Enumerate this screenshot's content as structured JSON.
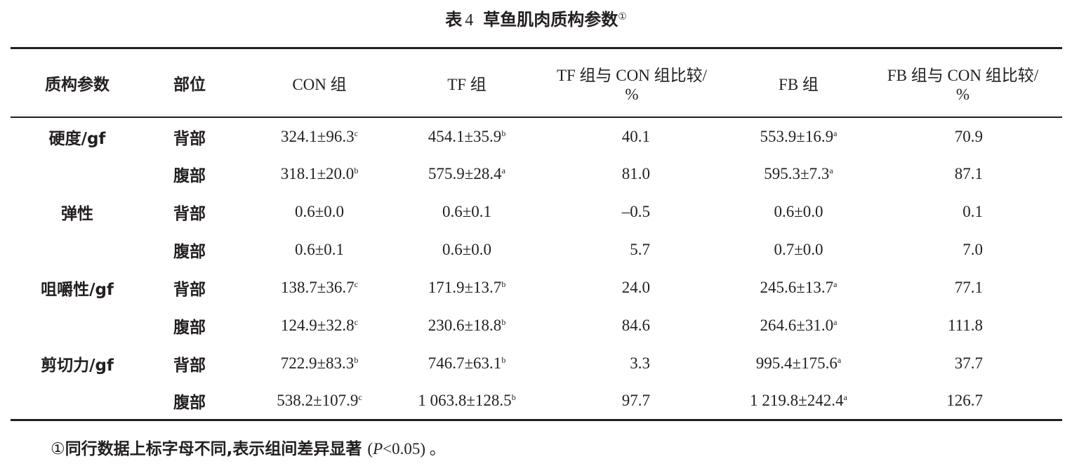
{
  "title": {
    "prefix": "表",
    "number": "4",
    "text": "草鱼肌肉质构参数",
    "footnote_mark": "①"
  },
  "headers": {
    "param": "质构参数",
    "part": "部位",
    "con": "CON 组",
    "tf": "TF 组",
    "tf_vs_con_line1": "TF 组与 CON 组比较/",
    "tf_vs_con_line2": "%",
    "fb": "FB 组",
    "fb_vs_con_line1": "FB 组与 CON 组比较/",
    "fb_vs_con_line2": "%"
  },
  "rows": [
    {
      "param": "硬度/gf",
      "part": "背部",
      "con": "324.1±96.3",
      "con_sup": "c",
      "tf": "454.1±35.9",
      "tf_sup": "b",
      "tf_pct": "40.1",
      "fb": "553.9±16.9",
      "fb_sup": "a",
      "fb_pct": "70.9"
    },
    {
      "param": "",
      "part": "腹部",
      "con": "318.1±20.0",
      "con_sup": "b",
      "tf": "575.9±28.4",
      "tf_sup": "a",
      "tf_pct": "81.0",
      "fb": "595.3±7.3",
      "fb_sup": "a",
      "fb_pct": "87.1"
    },
    {
      "param": "弹性",
      "part": "背部",
      "con": "0.6±0.0",
      "con_sup": "",
      "tf": "0.6±0.1",
      "tf_sup": "",
      "tf_pct": "–0.5",
      "fb": "0.6±0.0",
      "fb_sup": "",
      "fb_pct": "0.1"
    },
    {
      "param": "",
      "part": "腹部",
      "con": "0.6±0.1",
      "con_sup": "",
      "tf": "0.6±0.0",
      "tf_sup": "",
      "tf_pct": "5.7",
      "fb": "0.7±0.0",
      "fb_sup": "",
      "fb_pct": "7.0"
    },
    {
      "param": "咀嚼性/gf",
      "part": "背部",
      "con": "138.7±36.7",
      "con_sup": "c",
      "tf": "171.9±13.7",
      "tf_sup": "b",
      "tf_pct": "24.0",
      "fb": "245.6±13.7",
      "fb_sup": "a",
      "fb_pct": "77.1"
    },
    {
      "param": "",
      "part": "腹部",
      "con": "124.9±32.8",
      "con_sup": "c",
      "tf": "230.6±18.8",
      "tf_sup": "b",
      "tf_pct": "84.6",
      "fb": "264.6±31.0",
      "fb_sup": "a",
      "fb_pct": "111.8"
    },
    {
      "param": "剪切力/gf",
      "part": "背部",
      "con": "722.9±83.3",
      "con_sup": "b",
      "tf": "746.7±63.1",
      "tf_sup": "b",
      "tf_pct": "3.3",
      "fb": "995.4±175.6",
      "fb_sup": "a",
      "fb_pct": "37.7"
    },
    {
      "param": "",
      "part": "腹部",
      "con": "538.2±107.9",
      "con_sup": "c",
      "tf": "1 063.8±128.5",
      "tf_sup": "b",
      "tf_pct": "97.7",
      "fb": "1 219.8±242.4",
      "fb_sup": "a",
      "fb_pct": "126.7"
    }
  ],
  "note": {
    "mark": "①",
    "text": "同行数据上标字母不同,表示组间差异显著",
    "open": "(",
    "p": "P",
    "cond": "<0.05",
    "close": ")",
    "end": " 。"
  }
}
